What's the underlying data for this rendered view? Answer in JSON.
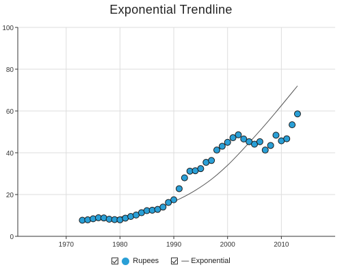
{
  "colors": {
    "marker_fill": "#2a9fd6",
    "marker_stroke": "#1a1a1a",
    "trend": "#555555",
    "grid": "#dddddd",
    "axis": "#333333"
  },
  "chart_data": {
    "type": "scatter",
    "title": "Exponential  Trendline",
    "xlabel": "",
    "ylabel": "",
    "xlim": [
      1961,
      2020
    ],
    "ylim": [
      0,
      100
    ],
    "x_ticks": [
      "1970",
      "1980",
      "1990",
      "2000",
      "2010"
    ],
    "y_ticks": [
      "0",
      "20",
      "40",
      "60",
      "80",
      "100"
    ],
    "grid": true,
    "legend_position": "bottom-center",
    "series": [
      {
        "name": "Rupees",
        "x": [
          1973,
          1974,
          1975,
          1976,
          1977,
          1978,
          1979,
          1980,
          1981,
          1982,
          1983,
          1984,
          1985,
          1986,
          1987,
          1988,
          1989,
          1990,
          1991,
          1992,
          1993,
          1994,
          1995,
          1996,
          1997,
          1998,
          1999,
          2000,
          2001,
          2002,
          2003,
          2004,
          2005,
          2006,
          2007,
          2008,
          2009,
          2010,
          2011,
          2012,
          2013
        ],
        "y": [
          7.7,
          7.9,
          8.4,
          8.9,
          8.8,
          8.2,
          8.0,
          7.9,
          8.7,
          9.5,
          10.2,
          11.3,
          12.3,
          12.5,
          12.9,
          14.0,
          16.2,
          17.5,
          22.8,
          28.0,
          31.2,
          31.4,
          32.4,
          35.4,
          36.3,
          41.3,
          43.1,
          45.0,
          47.2,
          48.6,
          46.6,
          45.3,
          44.1,
          45.3,
          41.3,
          43.5,
          48.4,
          45.7,
          46.7,
          53.4,
          58.6
        ]
      },
      {
        "name": "Exponential",
        "type": "line",
        "x": [
          1973,
          1976,
          1979,
          1982,
          1985,
          1988,
          1991,
          1994,
          1997,
          2000,
          2003,
          2006,
          2009,
          2013
        ],
        "y": [
          7.3,
          7.8,
          8.8,
          10.2,
          12.0,
          14.5,
          17.8,
          22.0,
          27.3,
          34.0,
          42.0,
          50.5,
          59.5,
          72.0
        ]
      }
    ]
  },
  "legend": [
    {
      "label": "Rupees"
    },
    {
      "label": "— Exponential"
    }
  ]
}
